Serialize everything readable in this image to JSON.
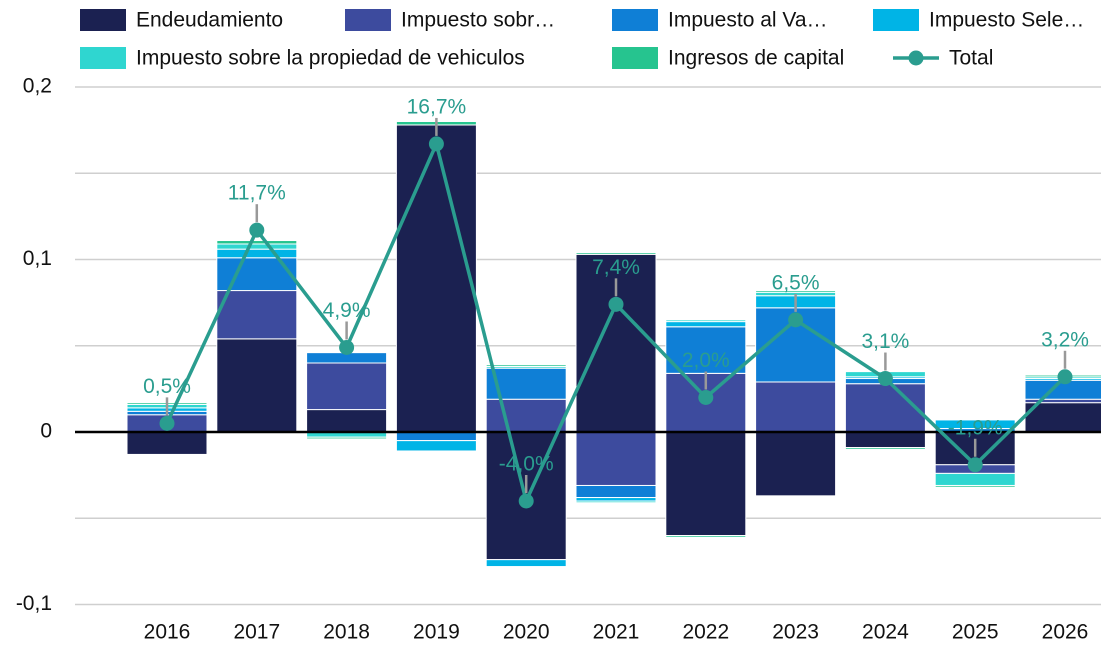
{
  "chart_data": {
    "type": "bar",
    "stacked": true,
    "categories": [
      "2016",
      "2017",
      "2018",
      "2019",
      "2020",
      "2021",
      "2022",
      "2023",
      "2024",
      "2025",
      "2026"
    ],
    "series": [
      {
        "name": "Endeudamiento",
        "color": "#1b2151",
        "values": [
          -0.013,
          0.054,
          0.013,
          0.178,
          -0.074,
          0.103,
          -0.06,
          -0.037,
          -0.009,
          -0.019,
          0.017
        ]
      },
      {
        "name": "Impuesto sobr…",
        "color": "#3d4b9e",
        "values": [
          0.01,
          0.028,
          0.027,
          0,
          0.019,
          -0.031,
          0.034,
          0.029,
          0.028,
          -0.005,
          0.002
        ]
      },
      {
        "name": "Impuesto al Va…",
        "color": "#0f7fd6",
        "values": [
          0.002,
          0.019,
          0.006,
          -0.005,
          0.018,
          -0.007,
          0.027,
          0.043,
          0.003,
          0.002,
          0.011
        ]
      },
      {
        "name": "Impuesto Sele…",
        "color": "#00b4e6",
        "values": [
          0.002,
          0.005,
          0,
          -0.006,
          -0.004,
          -0.002,
          0.003,
          0.007,
          0.001,
          0.005,
          0.001
        ]
      },
      {
        "name": "Impuesto sobre la propiedad de vehiculos",
        "color": "#2fd6d0",
        "values": [
          0.002,
          0.003,
          -0.003,
          0,
          0.001,
          -0.001,
          0.001,
          0.002,
          0.003,
          -0.007,
          0.001
        ]
      },
      {
        "name": "Ingresos de capital",
        "color": "#26c48f",
        "values": [
          0.001,
          0.002,
          -0.001,
          0.002,
          0.001,
          0.001,
          -0.001,
          0.001,
          -0.001,
          -0.001,
          0.001
        ]
      },
      {
        "name": "Total",
        "type": "line",
        "color": "#2a9d8f",
        "values": [
          0.005,
          0.117,
          0.049,
          0.167,
          -0.04,
          0.074,
          0.02,
          0.065,
          0.031,
          -0.019,
          0.032
        ],
        "value_labels": [
          "0,5%",
          "11,7%",
          "4,9%",
          "16,7%",
          "-4,0%",
          "7,4%",
          "2,0%",
          "6,5%",
          "3,1%",
          "-1,9%",
          "3,2%"
        ]
      }
    ],
    "ylim": [
      -0.11,
      0.2
    ],
    "yticks": [
      {
        "value": -0.1,
        "label": "-0,1"
      },
      0,
      {
        "value": 0.1,
        "label": "0,1"
      },
      {
        "value": 0.2,
        "label": "0,2"
      }
    ],
    "minor_yticks": [
      -0.05,
      0.05,
      0.15
    ],
    "grid": true,
    "legend": "top"
  }
}
